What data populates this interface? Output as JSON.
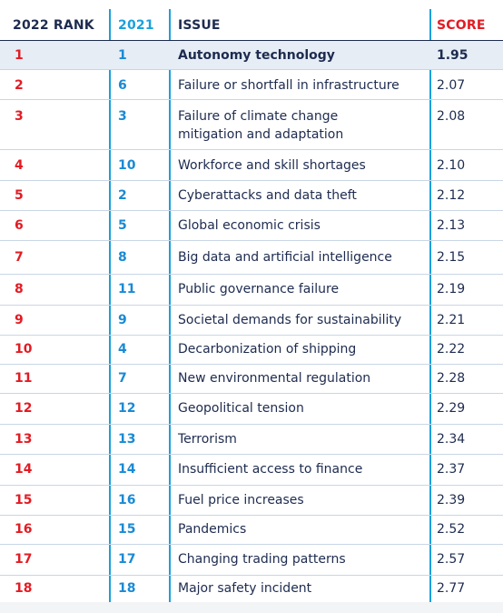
{
  "headers": {
    "rank2022": "2022 RANK",
    "rank2021": "2021",
    "issue": "ISSUE",
    "score": "SCORE"
  },
  "rows": [
    {
      "rank2022": "1",
      "rank2021": "1",
      "issue": "Autonomy technology",
      "score": "1.95"
    },
    {
      "rank2022": "2",
      "rank2021": "6",
      "issue": "Failure or shortfall in infrastructure",
      "score": "2.07"
    },
    {
      "rank2022": "3",
      "rank2021": "3",
      "issue_line1": "Failure of climate change",
      "issue_line2": "mitigation and adaptation",
      "score": "2.08"
    },
    {
      "rank2022": "4",
      "rank2021": "10",
      "issue": "Workforce and skill shortages",
      "score": "2.10"
    },
    {
      "rank2022": "5",
      "rank2021": "2",
      "issue": "Cyberattacks and data theft",
      "score": "2.12"
    },
    {
      "rank2022": "6",
      "rank2021": "5",
      "issue": "Global economic crisis",
      "score": "2.13"
    },
    {
      "rank2022": "7",
      "rank2021": "8",
      "issue": "Big data and artificial intelligence",
      "score": "2.15"
    },
    {
      "rank2022": "8",
      "rank2021": "11",
      "issue": "Public governance failure",
      "score": "2.19"
    },
    {
      "rank2022": "9",
      "rank2021": "9",
      "issue": "Societal demands for sustainability",
      "score": "2.21"
    },
    {
      "rank2022": "10",
      "rank2021": "4",
      "issue": "Decarbonization of shipping",
      "score": "2.22"
    },
    {
      "rank2022": "11",
      "rank2021": "7",
      "issue": "New environmental regulation",
      "score": "2.28"
    },
    {
      "rank2022": "12",
      "rank2021": "12",
      "issue": "Geopolitical tension",
      "score": "2.29"
    },
    {
      "rank2022": "13",
      "rank2021": "13",
      "issue": "Terrorism",
      "score": "2.34"
    },
    {
      "rank2022": "14",
      "rank2021": "14",
      "issue": "Insufficient access to finance",
      "score": "2.37"
    },
    {
      "rank2022": "15",
      "rank2021": "16",
      "issue": "Fuel price increases",
      "score": "2.39"
    },
    {
      "rank2022": "16",
      "rank2021": "15",
      "issue": "Pandemics",
      "score": "2.52"
    },
    {
      "rank2022": "17",
      "rank2021": "17",
      "issue": "Changing trading patterns",
      "score": "2.57"
    },
    {
      "rank2022": "18",
      "rank2021": "18",
      "issue": "Major safety incident",
      "score": "2.77"
    }
  ],
  "colors": {
    "rank_red": "#e31b23",
    "rank_blue": "#1a8ad4",
    "text_navy": "#1d2b4f",
    "highlight_row": "#e6edf5"
  }
}
